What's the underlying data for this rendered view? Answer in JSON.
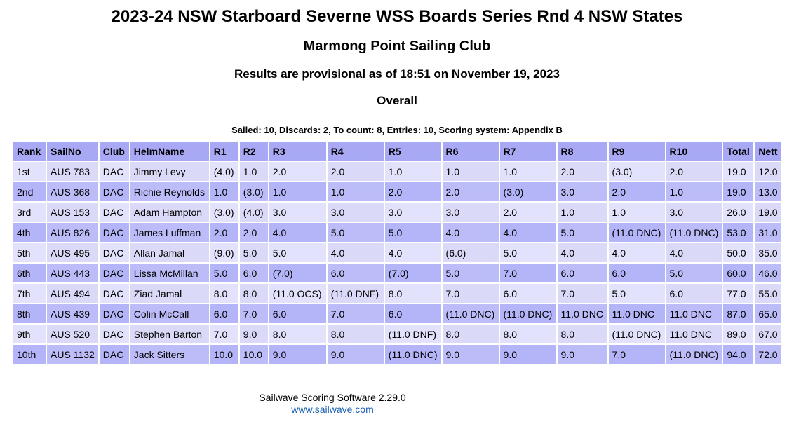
{
  "header": {
    "title": "2023-24 NSW Starboard Severne WSS Boards Series Rnd 4 NSW States",
    "club": "Marmong Point Sailing Club",
    "status": "Results are provisional as of 18:51 on November 19, 2023",
    "section": "Overall",
    "summary": "Sailed: 10, Discards: 2, To count: 8, Entries: 10, Scoring system: Appendix B"
  },
  "colors": {
    "header_bg": "#a8a8f4",
    "row_light": "#e2e2fc",
    "row_dark": "#b4b4f8",
    "link": "#1a5fb4"
  },
  "table": {
    "columns": [
      "Rank",
      "SailNo",
      "Club",
      "HelmName",
      "R1",
      "R2",
      "R3",
      "R4",
      "R5",
      "R6",
      "R7",
      "R8",
      "R9",
      "R10",
      "Total",
      "Nett"
    ],
    "rows": [
      [
        "1st",
        "AUS 783",
        "DAC",
        "Jimmy Levy",
        "(4.0)",
        "1.0",
        "2.0",
        "2.0",
        "1.0",
        "1.0",
        "1.0",
        "2.0",
        "(3.0)",
        "2.0",
        "19.0",
        "12.0"
      ],
      [
        "2nd",
        "AUS 368",
        "DAC",
        "Richie Reynolds",
        "1.0",
        "(3.0)",
        "1.0",
        "1.0",
        "2.0",
        "2.0",
        "(3.0)",
        "3.0",
        "2.0",
        "1.0",
        "19.0",
        "13.0"
      ],
      [
        "3rd",
        "AUS 153",
        "DAC",
        "Adam Hampton",
        "(3.0)",
        "(4.0)",
        "3.0",
        "3.0",
        "3.0",
        "3.0",
        "2.0",
        "1.0",
        "1.0",
        "3.0",
        "26.0",
        "19.0"
      ],
      [
        "4th",
        "AUS 826",
        "DAC",
        "James Luffman",
        "2.0",
        "2.0",
        "4.0",
        "5.0",
        "5.0",
        "4.0",
        "4.0",
        "5.0",
        "(11.0 DNC)",
        "(11.0 DNC)",
        "53.0",
        "31.0"
      ],
      [
        "5th",
        "AUS 495",
        "DAC",
        "Allan Jamal",
        "(9.0)",
        "5.0",
        "5.0",
        "4.0",
        "4.0",
        "(6.0)",
        "5.0",
        "4.0",
        "4.0",
        "4.0",
        "50.0",
        "35.0"
      ],
      [
        "6th",
        "AUS 443",
        "DAC",
        "Lissa McMillan",
        "5.0",
        "6.0",
        "(7.0)",
        "6.0",
        "(7.0)",
        "5.0",
        "7.0",
        "6.0",
        "6.0",
        "5.0",
        "60.0",
        "46.0"
      ],
      [
        "7th",
        "AUS 494",
        "DAC",
        "Ziad Jamal",
        "8.0",
        "8.0",
        "(11.0 OCS)",
        "(11.0 DNF)",
        "8.0",
        "7.0",
        "6.0",
        "7.0",
        "5.0",
        "6.0",
        "77.0",
        "55.0"
      ],
      [
        "8th",
        "AUS 439",
        "DAC",
        "Colin McCall",
        "6.0",
        "7.0",
        "6.0",
        "7.0",
        "6.0",
        "(11.0 DNC)",
        "(11.0 DNC)",
        "11.0 DNC",
        "11.0 DNC",
        "11.0 DNC",
        "87.0",
        "65.0"
      ],
      [
        "9th",
        "AUS 520",
        "DAC",
        "Stephen Barton",
        "7.0",
        "9.0",
        "8.0",
        "8.0",
        "(11.0 DNF)",
        "8.0",
        "8.0",
        "8.0",
        "(11.0 DNC)",
        "11.0 DNC",
        "89.0",
        "67.0"
      ],
      [
        "10th",
        "AUS 1132",
        "DAC",
        "Jack Sitters",
        "10.0",
        "10.0",
        "9.0",
        "9.0",
        "(11.0 DNC)",
        "9.0",
        "9.0",
        "9.0",
        "7.0",
        "(11.0 DNC)",
        "94.0",
        "72.0"
      ]
    ]
  },
  "footer": {
    "software": "Sailwave Scoring Software 2.29.0",
    "link_text": "www.sailwave.com"
  }
}
